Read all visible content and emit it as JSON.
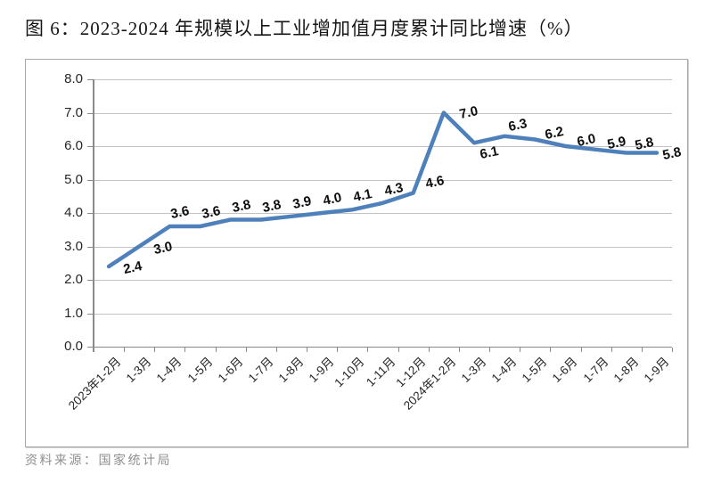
{
  "figure": {
    "title": "图 6：2023-2024 年规模以上工业增加值月度累计同比增速（%）",
    "source": "资料来源：国家统计局"
  },
  "chart_data": {
    "type": "line",
    "title": "图 6：2023-2024 年规模以上工业增加值月度累计同比增速（%）",
    "categories": [
      "2023年1-2月",
      "1-3月",
      "1-4月",
      "1-5月",
      "1-6月",
      "1-7月",
      "1-8月",
      "1-9月",
      "1-10月",
      "1-11月",
      "1-12月",
      "2024年1-2月",
      "1-3月",
      "1-4月",
      "1-5月",
      "1-6月",
      "1-7月",
      "1-8月",
      "1-9月"
    ],
    "values": [
      2.4,
      3.0,
      3.6,
      3.6,
      3.8,
      3.8,
      3.9,
      4.0,
      4.1,
      4.3,
      4.6,
      7.0,
      6.1,
      6.3,
      6.2,
      6.0,
      5.9,
      5.8,
      5.8
    ],
    "data_labels": [
      "2.4",
      "3.0",
      "3.6",
      "3.6",
      "3.8",
      "3.8",
      "3.9",
      "4.0",
      "4.1",
      "4.3",
      "4.6",
      "7.0",
      "6.1",
      "6.3",
      "6.2",
      "6.0",
      "5.9",
      "5.8",
      "5.8"
    ],
    "xlabel": "",
    "ylabel": "",
    "ylim": [
      0,
      8
    ],
    "ytick_step": 1,
    "ytick_labels": [
      "0.0",
      "1.0",
      "2.0",
      "3.0",
      "4.0",
      "5.0",
      "6.0",
      "7.0",
      "8.0"
    ],
    "grid": true,
    "legend": "none",
    "line_color": "#4e80bc",
    "line_width": 4.5,
    "data_label_rotation_deg": -12,
    "x_label_rotation_deg": -45,
    "label_offsets": {
      "default": [
        12,
        -15
      ],
      "0": [
        27,
        2
      ],
      "1": [
        27,
        2
      ],
      "10": [
        24,
        -12
      ],
      "11": [
        28,
        0
      ],
      "12": [
        17,
        12
      ],
      "13": [
        15,
        -12
      ],
      "14": [
        22,
        -7
      ],
      "15": [
        24,
        -6
      ],
      "16": [
        23,
        -7
      ],
      "17": [
        20,
        -10
      ],
      "18": [
        17,
        1
      ]
    },
    "colors": {
      "gridline": "#c3c3c3",
      "axis": "#8a8a8a",
      "tick_label": "#262626",
      "data_label": "#0d0d0d",
      "frame_border": "#a8a8a8",
      "title_text": "#161616",
      "source_text": "#8f8f8f"
    }
  }
}
